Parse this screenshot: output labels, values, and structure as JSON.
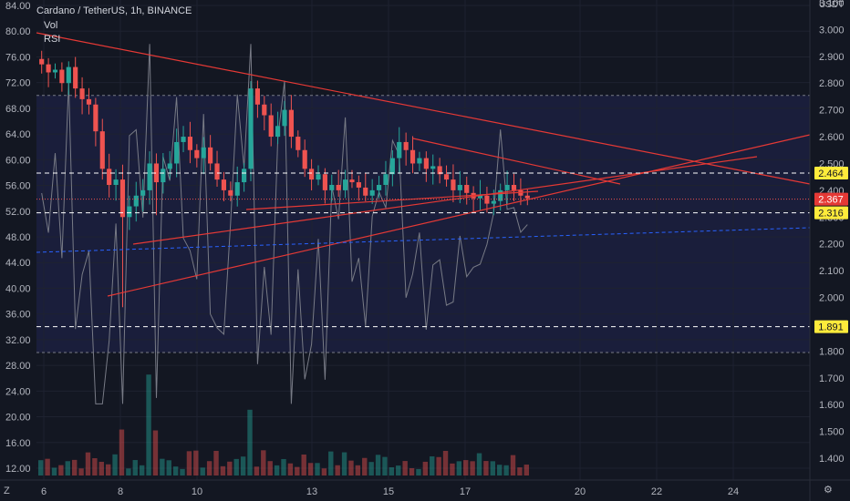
{
  "header": {
    "title": "Cardano / TetherUS, 1h, BINANCE",
    "vol_label": "Vol",
    "rsi_label": "RSI"
  },
  "price_axis": {
    "unit": "USDT",
    "ticks": [
      "3.100",
      "3.000",
      "2.900",
      "2.800",
      "2.700",
      "2.600",
      "2.500",
      "2.400",
      "2.300",
      "2.200",
      "2.100",
      "2.000",
      "1.900",
      "1.800",
      "1.700",
      "1.600",
      "1.500",
      "1.400"
    ],
    "tick_values": [
      3.1,
      3.0,
      2.9,
      2.8,
      2.7,
      2.6,
      2.5,
      2.4,
      2.3,
      2.2,
      2.1,
      2.0,
      1.9,
      1.8,
      1.7,
      1.6,
      1.5,
      1.4
    ]
  },
  "rsi_axis": {
    "ticks": [
      "84.00",
      "80.00",
      "76.00",
      "72.00",
      "68.00",
      "64.00",
      "60.00",
      "56.00",
      "52.00",
      "48.00",
      "44.00",
      "40.00",
      "36.00",
      "32.00",
      "28.00",
      "24.00",
      "20.00",
      "16.00",
      "12.00"
    ],
    "tick_values": [
      84,
      80,
      76,
      72,
      68,
      64,
      60,
      56,
      52,
      48,
      44,
      40,
      36,
      32,
      28,
      24,
      20,
      16,
      12
    ]
  },
  "time_axis": {
    "labels": [
      "6",
      "8",
      "10",
      "13",
      "15",
      "17",
      "20",
      "22",
      "24"
    ],
    "day_index": [
      0,
      2,
      4,
      7,
      9,
      11,
      14,
      16,
      18
    ]
  },
  "price_labels": [
    {
      "text": "2.464",
      "value": 2.464,
      "bg": "#ffeb3b",
      "fg": "#131722"
    },
    {
      "text": "2.367",
      "value": 2.367,
      "bg": "#e53935",
      "fg": "#ffffff"
    },
    {
      "text": "2.316",
      "value": 2.316,
      "bg": "#ffeb3b",
      "fg": "#131722"
    },
    {
      "text": "1.891",
      "value": 1.891,
      "bg": "#ffeb3b",
      "fg": "#131722"
    }
  ],
  "corner": {
    "left": "Z",
    "right": "⚙"
  },
  "colors": {
    "background": "#131722",
    "up": "#26a69a",
    "down": "#ef5350",
    "trendline": "#e53935",
    "hline": "#ffffff",
    "rsi": "#787b86",
    "rsi_band": "#1c2040",
    "dotted_blue": "#2962ff"
  },
  "chart_data": {
    "type": "candlestick",
    "title": "Cardano / TetherUS, 1h, BINANCE",
    "ylabel": "USDT",
    "ylim": [
      1.3,
      3.12
    ],
    "close_series": [
      2.87,
      2.84,
      2.85,
      2.8,
      2.86,
      2.78,
      2.74,
      2.72,
      2.62,
      2.48,
      2.42,
      2.44,
      2.3,
      2.34,
      2.38,
      2.4,
      2.5,
      2.43,
      2.48,
      2.5,
      2.58,
      2.6,
      2.55,
      2.52,
      2.56,
      2.5,
      2.44,
      2.4,
      2.38,
      2.43,
      2.48,
      2.78,
      2.72,
      2.68,
      2.6,
      2.64,
      2.7,
      2.6,
      2.55,
      2.48,
      2.44,
      2.46,
      2.4,
      2.42,
      2.4,
      2.44,
      2.43,
      2.41,
      2.38,
      2.4,
      2.42,
      2.46,
      2.52,
      2.58,
      2.55,
      2.5,
      2.52,
      2.48,
      2.49,
      2.46,
      2.44,
      2.4,
      2.42,
      2.39,
      2.37,
      2.38,
      2.35,
      2.36,
      2.4,
      2.42,
      2.4,
      2.38,
      2.37
    ],
    "horizontal_levels": [
      2.464,
      2.316,
      1.891
    ],
    "last_price": 2.367
  }
}
